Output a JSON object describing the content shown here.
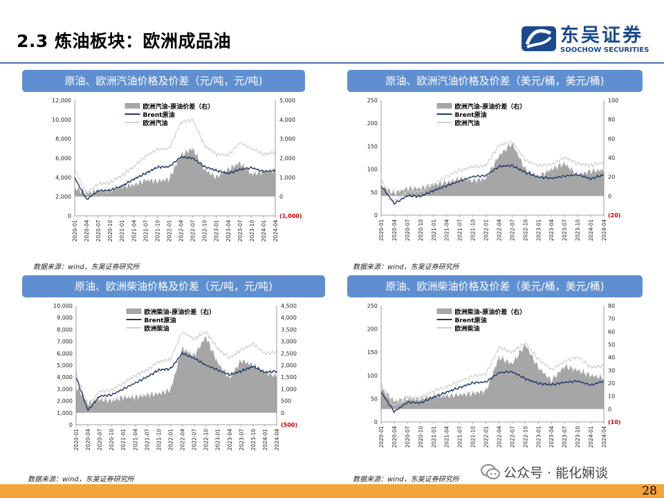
{
  "page": {
    "title": "2.3 炼油板块：欧洲成品油",
    "page_number": "28",
    "brand": {
      "cn": "东吴证券",
      "en": "SOOCHOW SECURITIES"
    },
    "watermark": "公众号 · 能化娴谈",
    "colors": {
      "brand": "#1b4a8c",
      "header": "#5f8fd0",
      "accent_bar": "#f3a43a",
      "spread": "#a6a6a6",
      "brent": "#1f3864",
      "product": "#d0d0d0",
      "negative": "#c00000"
    }
  },
  "x_dates": [
    "2020-01",
    "2020-04",
    "2020-07",
    "2020-10",
    "2021-01",
    "2021-04",
    "2021-07",
    "2021-10",
    "2022-01",
    "2022-04",
    "2022-07",
    "2022-10",
    "2023-01",
    "2023-04",
    "2023-07",
    "2023-10",
    "2024-01",
    "2024-04"
  ],
  "chart_data": [
    {
      "id": "c1",
      "type": "line",
      "header": "原油、欧洲汽油价格及价差（元/吨，元/吨)",
      "source": "数据来源：wind，东吴证券研究所",
      "legend": [
        "欧洲汽油-原油价差（右）",
        "Brent原油",
        "欧洲汽油"
      ],
      "x": [
        "2020-01",
        "2020-04",
        "2020-07",
        "2020-10",
        "2021-01",
        "2021-04",
        "2021-07",
        "2021-10",
        "2022-01",
        "2022-04",
        "2022-07",
        "2022-10",
        "2023-01",
        "2023-04",
        "2023-07",
        "2023-10",
        "2024-01",
        "2024-04"
      ],
      "y_left": {
        "min": 0,
        "max": 12000,
        "ticks": [
          "12,000",
          "10,000",
          "8,000",
          "6,000",
          "4,000",
          "2,000",
          "0"
        ]
      },
      "y_right": {
        "min": -1000,
        "max": 5000,
        "ticks": [
          "5,000",
          "4,000",
          "3,000",
          "2,000",
          "1,000",
          "0",
          "(1,000)"
        ]
      },
      "series": [
        {
          "name": "欧洲汽油-原油价差（右）",
          "type": "area",
          "axis": "right",
          "values": [
            450,
            180,
            280,
            320,
            520,
            600,
            850,
            800,
            900,
            2150,
            2500,
            1400,
            1000,
            1400,
            1750,
            1150,
            1300,
            1350
          ]
        },
        {
          "name": "Brent原油",
          "type": "line",
          "axis": "left",
          "values": [
            3950,
            1700,
            2600,
            2650,
            3100,
            3800,
            4400,
            5050,
            5100,
            6100,
            6000,
            5100,
            4700,
            4400,
            4800,
            5000,
            4600,
            4700
          ]
        },
        {
          "name": "欧洲汽油",
          "type": "line",
          "axis": "left",
          "values": [
            4800,
            2300,
            3300,
            3450,
            4200,
            5100,
            6200,
            6900,
            7000,
            9700,
            10000,
            7300,
            6400,
            6300,
            7600,
            7000,
            6400,
            6600
          ]
        }
      ]
    },
    {
      "id": "c2",
      "type": "line",
      "header": "原油、欧洲汽油价格及价差（美元/桶，美元/桶)",
      "source": "数据来源：wind，东吴证券研究所",
      "legend": [
        "欧洲汽油-原油价差（右）",
        "Brent原油",
        "欧洲汽油"
      ],
      "x": [
        "2020-01",
        "2020-04",
        "2020-07",
        "2020-10",
        "2021-01",
        "2021-04",
        "2021-07",
        "2021-10",
        "2022-01",
        "2022-04",
        "2022-07",
        "2022-10",
        "2023-01",
        "2023-04",
        "2023-07",
        "2023-10",
        "2024-01",
        "2024-04"
      ],
      "y_left": {
        "min": 0,
        "max": 250,
        "ticks": [
          "250",
          "200",
          "150",
          "100",
          "50",
          "0"
        ]
      },
      "y_right": {
        "min": -20,
        "max": 100,
        "ticks": [
          "100",
          "80",
          "60",
          "40",
          "20",
          "0",
          "(20)"
        ]
      },
      "series": [
        {
          "name": "欧洲汽油-原油价差（右）",
          "type": "area",
          "axis": "right",
          "values": [
            10,
            3,
            8,
            8,
            12,
            14,
            18,
            16,
            18,
            42,
            55,
            28,
            20,
            28,
            34,
            22,
            26,
            27
          ]
        },
        {
          "name": "Brent原油",
          "type": "line",
          "axis": "left",
          "values": [
            64,
            25,
            42,
            41,
            53,
            64,
            74,
            84,
            86,
            106,
            108,
            93,
            83,
            80,
            85,
            88,
            79,
            88
          ]
        },
        {
          "name": "欧洲汽油",
          "type": "line",
          "axis": "left",
          "values": [
            76,
            30,
            52,
            51,
            68,
            84,
            98,
            105,
            108,
            152,
            160,
            120,
            108,
            110,
            125,
            112,
            108,
            114
          ]
        }
      ]
    },
    {
      "id": "c3",
      "type": "line",
      "header": "原油、欧洲柴油价格及价差（元/吨，元/吨)",
      "source": "数据来源：wind，东吴证券研究所",
      "legend": [
        "欧洲柴油-原油价差（右）",
        "Brent原油",
        "欧洲柴油"
      ],
      "x": [
        "2020-01",
        "2020-04",
        "2020-07",
        "2020-10",
        "2021-01",
        "2021-04",
        "2021-07",
        "2021-10",
        "2022-01",
        "2022-04",
        "2022-07",
        "2022-10",
        "2023-01",
        "2023-04",
        "2023-07",
        "2023-10",
        "2024-01",
        "2024-04"
      ],
      "y_left": {
        "min": 0,
        "max": 10000,
        "ticks": [
          "10,000",
          "9,000",
          "8,000",
          "7,000",
          "6,000",
          "5,000",
          "4,000",
          "3,000",
          "2,000",
          "1,000",
          "0"
        ]
      },
      "y_right": {
        "min": -500,
        "max": 4500,
        "ticks": [
          "4,500",
          "4,000",
          "3,500",
          "3,000",
          "2,500",
          "2,000",
          "1,500",
          "1,000",
          "500",
          "0",
          "(500)"
        ]
      },
      "series": [
        {
          "name": "欧洲柴油-原油价差（右）",
          "type": "area",
          "axis": "right",
          "values": [
            1100,
            400,
            550,
            500,
            650,
            650,
            750,
            800,
            950,
            2700,
            2400,
            3200,
            2100,
            1450,
            2200,
            2000,
            1700,
            1550
          ]
        },
        {
          "name": "Brent原油",
          "type": "line",
          "axis": "left",
          "values": [
            4000,
            1200,
            2400,
            2500,
            3000,
            3500,
            4000,
            4600,
            4700,
            6000,
            5600,
            5000,
            4600,
            4200,
            4500,
            4900,
            4400,
            4500
          ]
        },
        {
          "name": "欧洲柴油",
          "type": "line",
          "axis": "left",
          "values": [
            4300,
            1500,
            2800,
            2900,
            3500,
            4100,
            4600,
            5300,
            5500,
            7800,
            7200,
            7800,
            6400,
            5600,
            6300,
            6800,
            6000,
            6100
          ]
        }
      ]
    },
    {
      "id": "c4",
      "type": "line",
      "header": "原油、欧洲柴油价格及价差（美元/桶，美元/桶)",
      "source": "数据来源：wind，东吴证券研究所",
      "legend": [
        "欧洲柴油-原油价差（右）",
        "Brent原油",
        "欧洲柴油"
      ],
      "x": [
        "2020-01",
        "2020-04",
        "2020-07",
        "2020-10",
        "2021-01",
        "2021-04",
        "2021-07",
        "2021-10",
        "2022-01",
        "2022-04",
        "2022-07",
        "2022-10",
        "2023-01",
        "2023-04",
        "2023-07",
        "2023-10",
        "2024-01",
        "2024-04"
      ],
      "y_left": {
        "min": 0,
        "max": 250,
        "ticks": [
          "250",
          "200",
          "150",
          "100",
          "50",
          "0"
        ]
      },
      "y_right": {
        "min": -10,
        "max": 80,
        "ticks": [
          "80",
          "70",
          "60",
          "50",
          "40",
          "30",
          "20",
          "10",
          "0",
          "(10)"
        ]
      },
      "series": [
        {
          "name": "欧洲柴油-原油价差（右）",
          "type": "area",
          "axis": "right",
          "values": [
            16,
            6,
            8,
            8,
            10,
            10,
            11,
            12,
            14,
            40,
            35,
            50,
            32,
            22,
            33,
            30,
            26,
            24
          ]
        },
        {
          "name": "Brent原油",
          "type": "line",
          "axis": "left",
          "values": [
            64,
            22,
            42,
            41,
            53,
            64,
            74,
            84,
            86,
            106,
            108,
            93,
            83,
            80,
            85,
            88,
            79,
            88
          ]
        },
        {
          "name": "欧洲柴油",
          "type": "line",
          "axis": "left",
          "values": [
            80,
            34,
            52,
            51,
            66,
            76,
            88,
            98,
            104,
            160,
            150,
            170,
            135,
            112,
            130,
            140,
            118,
            120
          ]
        }
      ]
    }
  ]
}
